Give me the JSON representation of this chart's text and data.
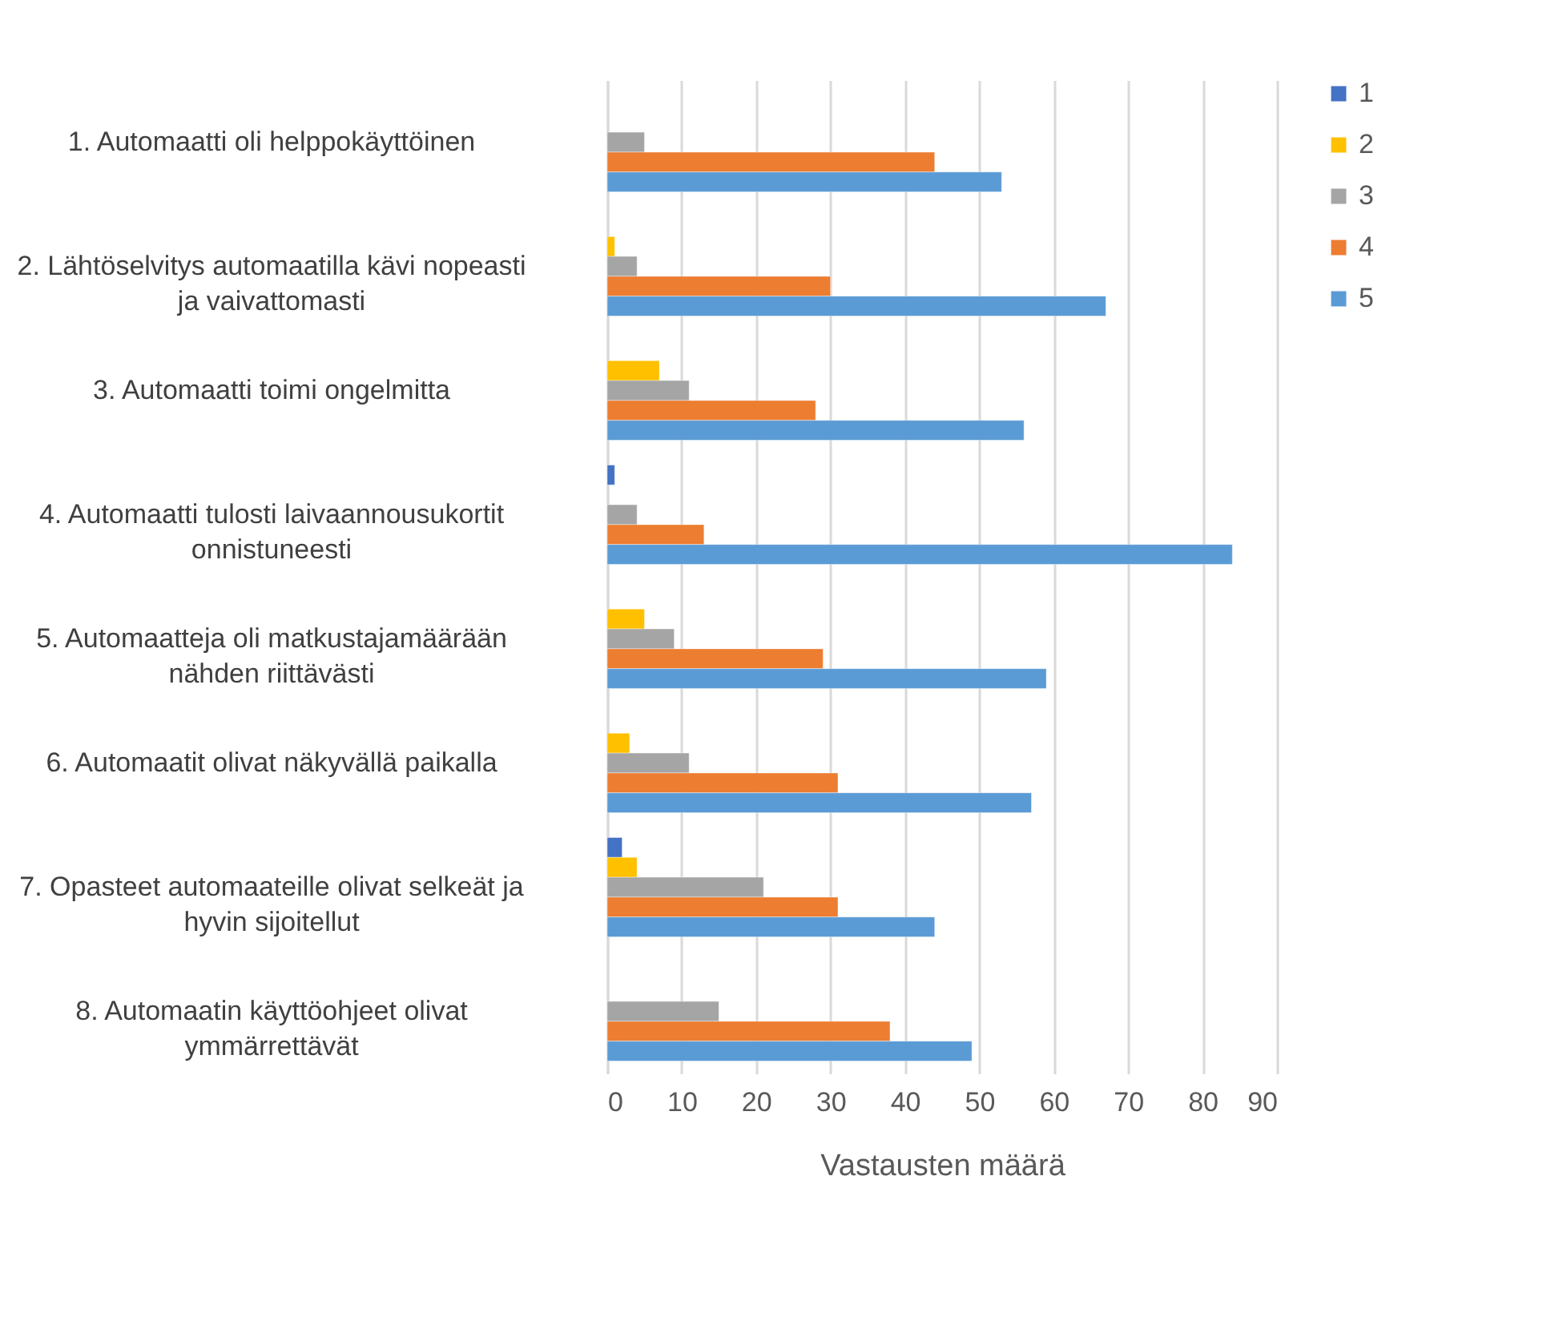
{
  "chart_data": {
    "type": "bar",
    "orientation": "horizontal",
    "xlabel": "Vastausten määrä",
    "categories": [
      "1. Automaatti oli helppokäyttöinen",
      "2. Lähtöselvitys automaatilla kävi nopeasti ja vaivattomasti",
      "3. Automaatti toimi ongelmitta",
      "4. Automaatti tulosti laivaannousukortit onnistuneesti",
      "5. Automaatteja oli matkustajamäärään nähden riittävästi",
      "6. Automaatit olivat näkyvällä paikalla",
      "7. Opasteet automaateille olivat selkeät ja hyvin sijoitellut",
      "8. Automaatin käyttöohjeet olivat ymmärrettävät"
    ],
    "series": [
      {
        "name": "1",
        "color": "#4472c4",
        "values": [
          null,
          null,
          null,
          1,
          null,
          null,
          2,
          null
        ]
      },
      {
        "name": "2",
        "color": "#ffc000",
        "values": [
          null,
          1,
          7,
          null,
          5,
          3,
          4,
          null
        ]
      },
      {
        "name": "3",
        "color": "#a5a5a5",
        "values": [
          5,
          4,
          11,
          4,
          9,
          11,
          21,
          15
        ]
      },
      {
        "name": "4",
        "color": "#ed7d31",
        "values": [
          44,
          30,
          28,
          13,
          29,
          31,
          31,
          38
        ]
      },
      {
        "name": "5",
        "color": "#5b9bd5",
        "values": [
          53,
          67,
          56,
          84,
          59,
          57,
          44,
          49
        ]
      }
    ],
    "xlim": [
      0,
      90
    ],
    "xticks": [
      0,
      10,
      20,
      30,
      40,
      50,
      60,
      70,
      80,
      90
    ],
    "grid": "x",
    "legend": "right"
  }
}
